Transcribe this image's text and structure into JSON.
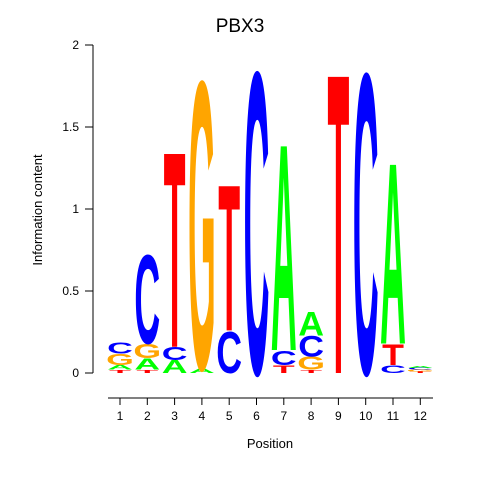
{
  "chart_data": {
    "type": "sequence_logo",
    "title": "PBX3",
    "xlabel": "Position",
    "ylabel": "Information content",
    "ylim": [
      0,
      2
    ],
    "y_ticks": [
      "0",
      "0.5",
      "1",
      "1.5",
      "2"
    ],
    "y_tick_values": [
      0,
      0.5,
      1,
      1.5,
      2
    ],
    "x_ticks": [
      "1",
      "2",
      "3",
      "4",
      "5",
      "6",
      "7",
      "8",
      "9",
      "10",
      "11",
      "12"
    ],
    "colors": {
      "A": "#00ff00",
      "C": "#0000ff",
      "G": "#ffa500",
      "T": "#ff0000"
    },
    "positions": [
      {
        "position": 1,
        "stack": [
          [
            "T",
            0.02
          ],
          [
            "A",
            0.03
          ],
          [
            "G",
            0.07
          ],
          [
            "C",
            0.07
          ]
        ]
      },
      {
        "position": 2,
        "stack": [
          [
            "T",
            0.02
          ],
          [
            "A",
            0.07
          ],
          [
            "G",
            0.09
          ],
          [
            "C",
            0.56
          ]
        ]
      },
      {
        "position": 3,
        "stack": [
          [
            "A",
            0.08
          ],
          [
            "C",
            0.08
          ],
          [
            "T",
            1.23
          ]
        ]
      },
      {
        "position": 4,
        "stack": [
          [
            "A",
            0.03
          ],
          [
            "G",
            1.81
          ]
        ]
      },
      {
        "position": 5,
        "stack": [
          [
            "C",
            0.26
          ],
          [
            "T",
            0.92
          ]
        ]
      },
      {
        "position": 6,
        "stack": [
          [
            "C",
            1.9
          ]
        ]
      },
      {
        "position": 7,
        "stack": [
          [
            "T",
            0.05
          ],
          [
            "C",
            0.09
          ],
          [
            "A",
            1.3
          ]
        ]
      },
      {
        "position": 8,
        "stack": [
          [
            "T",
            0.02
          ],
          [
            "G",
            0.08
          ],
          [
            "C",
            0.13
          ],
          [
            "A",
            0.15
          ]
        ]
      },
      {
        "position": 9,
        "stack": [
          [
            "T",
            1.89
          ]
        ]
      },
      {
        "position": 10,
        "stack": [
          [
            "C",
            1.89
          ]
        ]
      },
      {
        "position": 11,
        "stack": [
          [
            "C",
            0.05
          ],
          [
            "T",
            0.13
          ],
          [
            "A",
            1.14
          ]
        ]
      },
      {
        "position": 12,
        "stack": [
          [
            "T",
            0.01
          ],
          [
            "G",
            0.01
          ],
          [
            "C",
            0.01
          ],
          [
            "A",
            0.01
          ]
        ]
      }
    ]
  }
}
